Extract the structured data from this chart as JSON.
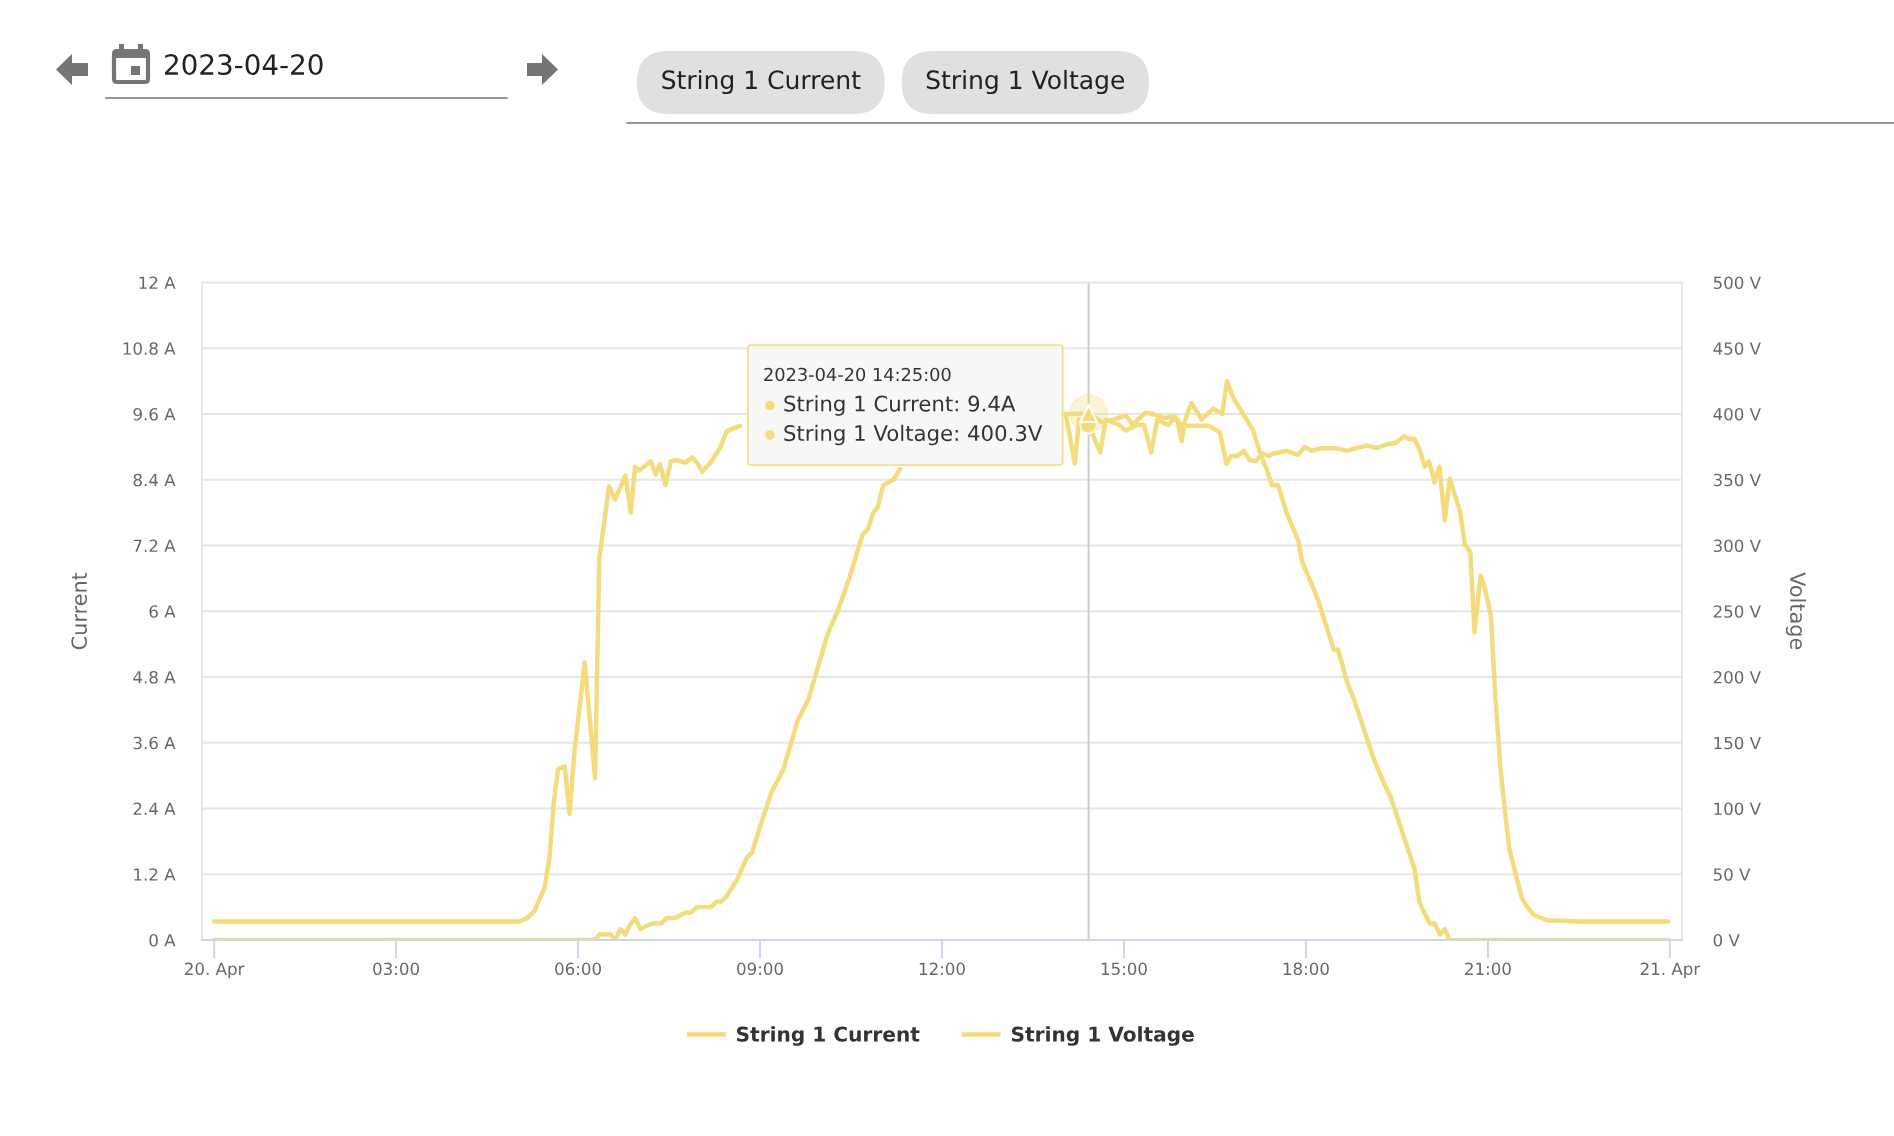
{
  "chart_data": {
    "type": "line",
    "ylabel": "Current",
    "y2label": "Voltage",
    "xlim": [
      -0.2,
      24.2
    ],
    "xticks": [
      {
        "value": 0,
        "label": "20. Apr"
      },
      {
        "value": 3,
        "label": "03:00"
      },
      {
        "value": 6,
        "label": "06:00"
      },
      {
        "value": 9,
        "label": "09:00"
      },
      {
        "value": 12,
        "label": "12:00"
      },
      {
        "value": 15,
        "label": "15:00"
      },
      {
        "value": 18,
        "label": "18:00"
      },
      {
        "value": 21,
        "label": "21:00"
      },
      {
        "value": 24,
        "label": "21. Apr"
      }
    ],
    "ylim": [
      0,
      12
    ],
    "yticks": [
      {
        "value": 0,
        "label": "0 A"
      },
      {
        "value": 1.2,
        "label": "1.2 A"
      },
      {
        "value": 2.4,
        "label": "2.4 A"
      },
      {
        "value": 3.6,
        "label": "3.6 A"
      },
      {
        "value": 4.8,
        "label": "4.8 A"
      },
      {
        "value": 6,
        "label": "6 A"
      },
      {
        "value": 7.2,
        "label": "7.2 A"
      },
      {
        "value": 8.4,
        "label": "8.4 A"
      },
      {
        "value": 9.6,
        "label": "9.6 A"
      },
      {
        "value": 10.8,
        "label": "10.8 A"
      },
      {
        "value": 12,
        "label": "12 A"
      }
    ],
    "y2lim": [
      0,
      500
    ],
    "y2ticks": [
      {
        "value": 0,
        "label": "0 V"
      },
      {
        "value": 50,
        "label": "50 V"
      },
      {
        "value": 100,
        "label": "100 V"
      },
      {
        "value": 150,
        "label": "150 V"
      },
      {
        "value": 200,
        "label": "200 V"
      },
      {
        "value": 250,
        "label": "250 V"
      },
      {
        "value": 300,
        "label": "300 V"
      },
      {
        "value": 350,
        "label": "350 V"
      },
      {
        "value": 400,
        "label": "400 V"
      },
      {
        "value": 450,
        "label": "450 V"
      },
      {
        "value": 500,
        "label": "500 V"
      }
    ],
    "grid": "y",
    "legend": "bottom",
    "series": [
      {
        "name": "String 1 Current",
        "color": "#f4dc7c",
        "x": [
          0,
          6.28,
          6.35,
          6.54,
          6.61,
          6.7,
          6.78,
          6.87,
          6.94,
          7.03,
          7.22,
          7.37,
          7.46,
          7.6,
          7.77,
          7.86,
          7.96,
          8.19,
          8.28,
          8.36,
          8.45,
          8.62,
          8.78,
          8.87,
          9.01,
          9.19,
          9.38,
          9.62,
          9.8,
          10.12,
          10.28,
          10.47,
          10.69,
          10.78,
          10.87,
          10.94,
          11.03,
          11.2,
          11.31,
          11.6,
          11.85,
          12.1,
          12.4,
          12.7,
          13.0,
          13.3,
          13.6,
          13.9,
          14.04,
          14.19,
          14.26,
          14.4167,
          14.61,
          14.7,
          14.92,
          15.03,
          15.22,
          15.33,
          15.45,
          15.55,
          15.73,
          15.81,
          15.88,
          15.95,
          16.01,
          16.11,
          16.28,
          16.47,
          16.62,
          16.7,
          16.8,
          16.91,
          17.02,
          17.13,
          17.24,
          17.35,
          17.44,
          17.54,
          17.68,
          17.87,
          17.94,
          18.13,
          18.2,
          18.46,
          18.53,
          18.68,
          18.79,
          19.12,
          19.27,
          19.4,
          19.55,
          19.7,
          19.79,
          19.87,
          19.95,
          20.04,
          20.12,
          20.21,
          20.29,
          20.36,
          23.97
        ],
        "values": [
          0,
          0,
          0.1,
          0.1,
          0,
          0.2,
          0.1,
          0.3,
          0.4,
          0.2,
          0.3,
          0.3,
          0.4,
          0.4,
          0.5,
          0.5,
          0.6,
          0.6,
          0.7,
          0.7,
          0.8,
          1.1,
          1.5,
          1.6,
          2.1,
          2.7,
          3.1,
          4.0,
          4.4,
          5.6,
          6.0,
          6.6,
          7.4,
          7.5,
          7.8,
          7.9,
          8.3,
          8.4,
          8.6,
          null,
          null,
          null,
          null,
          null,
          null,
          null,
          null,
          null,
          9.6,
          8.7,
          9.5,
          9.4,
          8.9,
          9.5,
          9.4,
          9.3,
          9.4,
          9.4,
          8.9,
          9.5,
          9.4,
          9.5,
          9.5,
          9.1,
          9.5,
          9.8,
          9.5,
          9.7,
          9.6,
          10.2,
          9.9,
          9.7,
          9.5,
          9.3,
          8.9,
          8.6,
          8.3,
          8.3,
          7.8,
          7.3,
          6.9,
          6.4,
          6.2,
          5.3,
          5.3,
          4.7,
          4.4,
          3.3,
          2.9,
          2.6,
          2.1,
          1.6,
          1.3,
          0.7,
          0.5,
          0.3,
          0.3,
          0.1,
          0.2,
          0,
          0
        ]
      },
      {
        "name": "String 1 Voltage",
        "color": "#f4dc7c",
        "axis": "y2",
        "x": [
          0,
          1,
          2,
          3,
          4,
          5.03,
          5.17,
          5.28,
          5.45,
          5.53,
          5.6,
          5.67,
          5.78,
          5.86,
          5.94,
          6.11,
          6.28,
          6.35,
          6.51,
          6.61,
          6.78,
          6.87,
          6.94,
          7.01,
          7.2,
          7.28,
          7.35,
          7.44,
          7.53,
          7.62,
          7.77,
          7.88,
          7.96,
          8.05,
          8.2,
          8.34,
          8.45,
          8.67,
          9.0,
          9.5,
          10.0,
          10.5,
          11.0,
          11.5,
          12.0,
          12.5,
          13.0,
          13.5,
          14.04,
          14.4167,
          14.63,
          14.78,
          15.03,
          15.14,
          15.36,
          15.47,
          15.66,
          15.84,
          15.95,
          16.18,
          16.4,
          16.58,
          16.69,
          16.76,
          16.87,
          16.98,
          17.07,
          17.17,
          17.28,
          17.39,
          17.46,
          17.68,
          17.87,
          17.98,
          18.09,
          18.27,
          18.49,
          18.68,
          18.83,
          19.01,
          19.16,
          19.34,
          19.48,
          19.62,
          19.7,
          19.79,
          19.88,
          19.96,
          20.03,
          20.12,
          20.2,
          20.29,
          20.37,
          20.54,
          20.62,
          20.71,
          20.78,
          20.88,
          20.95,
          21.05,
          21.12,
          21.21,
          21.28,
          21.35,
          21.47,
          21.56,
          21.65,
          21.76,
          21.98,
          22.53,
          23.97
        ],
        "values": [
          14,
          14,
          14,
          14,
          14,
          14,
          17,
          22,
          40,
          63,
          105,
          130,
          132,
          96,
          143,
          211,
          123,
          290,
          345,
          335,
          353,
          325,
          360,
          357,
          364,
          354,
          362,
          346,
          364,
          365,
          363,
          367,
          363,
          356,
          364,
          374,
          387,
          391,
          null,
          null,
          null,
          null,
          null,
          null,
          null,
          null,
          null,
          null,
          400,
          400.3,
          394,
          395,
          399,
          392,
          401,
          400,
          397,
          398,
          391,
          391,
          391,
          386,
          362,
          368,
          368,
          372,
          365,
          364,
          370,
          368,
          370,
          372,
          369,
          375,
          372,
          374,
          374,
          372,
          374,
          376,
          374,
          377,
          378,
          383,
          381,
          381,
          372,
          360,
          364,
          348,
          360,
          319,
          351,
          326,
          301,
          295,
          234,
          277,
          268,
          246,
          187,
          129,
          99,
          70,
          48,
          32,
          25,
          19,
          15,
          14,
          14
        ]
      },
      {
        "type": "scatter",
        "color": "#f4dc7c",
        "marker": "circle",
        "x": [
          14.4167
        ],
        "values": [
          9.4
        ]
      },
      {
        "type": "scatter",
        "color": "#f4dc7c",
        "marker": "triangle",
        "axis": "y2",
        "x": [
          14.4167
        ],
        "values": [
          400.3
        ]
      }
    ],
    "ref_lines": [
      {
        "axis": "x",
        "value": 14.4167,
        "color": "#cccccc"
      }
    ],
    "annotations": [
      "2023-04-20",
      "String 1 Current",
      "String 1 Voltage",
      "2023-04-20 14:25:00",
      "String 1 Current: 9.4A",
      "String 1 Voltage: 400.3V"
    ]
  }
}
